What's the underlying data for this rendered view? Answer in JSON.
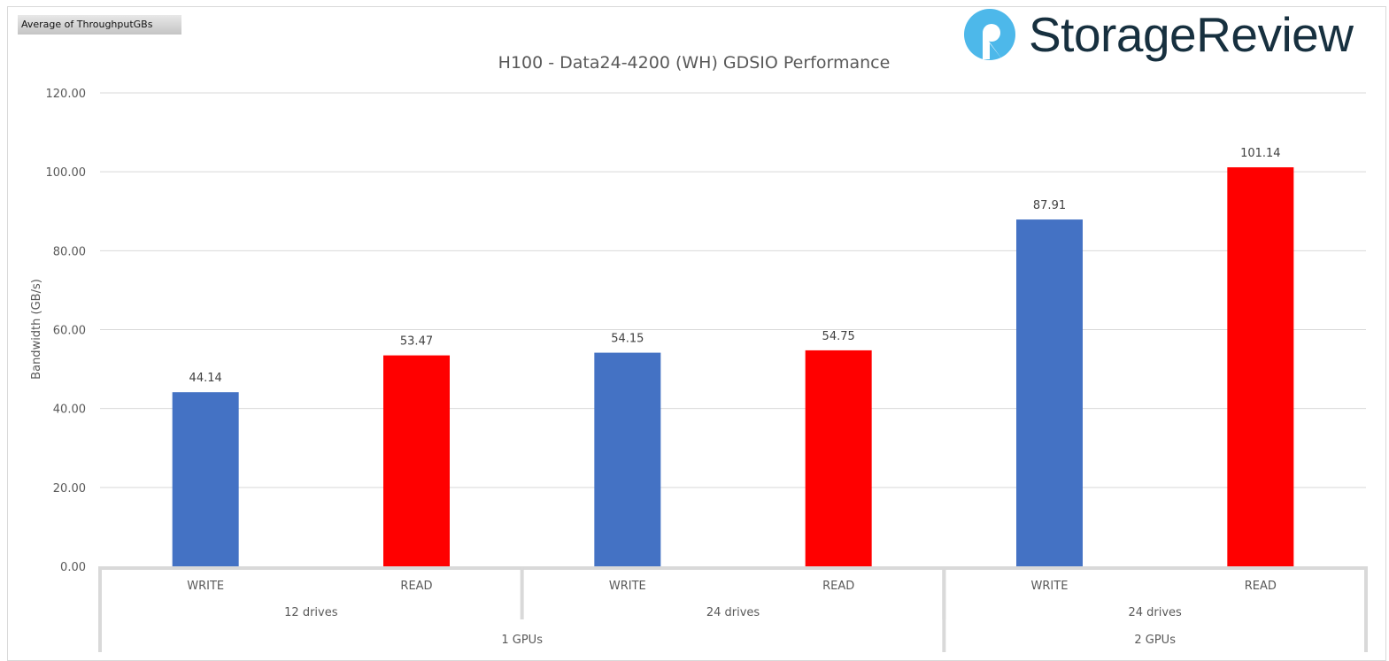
{
  "field_button": "Average of ThroughputGBs",
  "logo_text": "StorageReview",
  "colors": {
    "write": "#4472C4",
    "read": "#FF0000",
    "logo_blue": "#4DB8EA",
    "logo_dark": "#17303F"
  },
  "chart_data": {
    "type": "bar",
    "title": "H100 - Data24-4200 (WH) GDSIO Performance",
    "ylabel": "Bandwidth (GB/s)",
    "xlabel": "",
    "ylim": [
      0,
      120
    ],
    "yticks": [
      "0.00",
      "20.00",
      "40.00",
      "60.00",
      "80.00",
      "100.00",
      "120.00"
    ],
    "grid": true,
    "categories": [
      "WRITE",
      "READ",
      "WRITE",
      "READ",
      "WRITE",
      "READ"
    ],
    "values": [
      44.14,
      53.47,
      54.15,
      54.75,
      87.91,
      101.14
    ],
    "labels": [
      "44.14",
      "53.47",
      "54.15",
      "54.75",
      "87.91",
      "101.14"
    ],
    "drive_groups": [
      {
        "label": "12 drives",
        "span": 2
      },
      {
        "label": "24 drives",
        "span": 2
      },
      {
        "label": "24 drives",
        "span": 2
      }
    ],
    "gpu_groups": [
      {
        "label": "1 GPUs",
        "span": 4
      },
      {
        "label": "2 GPUs",
        "span": 2
      }
    ]
  }
}
